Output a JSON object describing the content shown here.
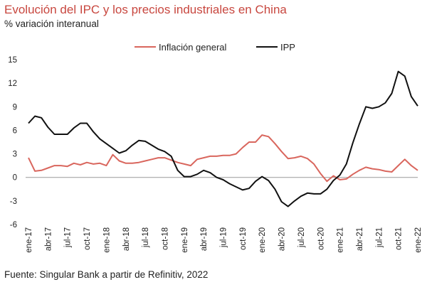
{
  "header": {
    "title": "Evolución del IPC y los precios industriales en China",
    "subtitle": "% variación interanual"
  },
  "footer": {
    "source": "Fuente: Singular Bank a partir de Refinitiv, 2022"
  },
  "colors": {
    "series_1": "#d9665d",
    "series_2": "#111111",
    "title": "#c8473f",
    "zero_line": "#999999"
  },
  "chart_data": {
    "type": "line",
    "title": "Evolución del IPC y los precios industriales en China",
    "subtitle": "% variación interanual",
    "ylim": [
      -6,
      15
    ],
    "yticks": [
      -6,
      -3,
      0,
      3,
      6,
      9,
      12,
      15
    ],
    "grid": false,
    "legend_position": "top-right",
    "x_tick_labels": [
      "ene-17",
      "abr-17",
      "jul-17",
      "oct-17",
      "ene-18",
      "abr-18",
      "jul-18",
      "oct-18",
      "ene-19",
      "abr-19",
      "jul-19",
      "oct-19",
      "ene-20",
      "abr-20",
      "jul-20",
      "oct-20",
      "ene-21",
      "abr-21",
      "jul-21",
      "oct-21",
      "ene-22"
    ],
    "x": [
      "2017-01",
      "2017-02",
      "2017-03",
      "2017-04",
      "2017-05",
      "2017-06",
      "2017-07",
      "2017-08",
      "2017-09",
      "2017-10",
      "2017-11",
      "2017-12",
      "2018-01",
      "2018-02",
      "2018-03",
      "2018-04",
      "2018-05",
      "2018-06",
      "2018-07",
      "2018-08",
      "2018-09",
      "2018-10",
      "2018-11",
      "2018-12",
      "2019-01",
      "2019-02",
      "2019-03",
      "2019-04",
      "2019-05",
      "2019-06",
      "2019-07",
      "2019-08",
      "2019-09",
      "2019-10",
      "2019-11",
      "2019-12",
      "2020-01",
      "2020-02",
      "2020-03",
      "2020-04",
      "2020-05",
      "2020-06",
      "2020-07",
      "2020-08",
      "2020-09",
      "2020-10",
      "2020-11",
      "2020-12",
      "2021-01",
      "2021-02",
      "2021-03",
      "2021-04",
      "2021-05",
      "2021-06",
      "2021-07",
      "2021-08",
      "2021-09",
      "2021-10",
      "2021-11",
      "2021-12",
      "2022-01"
    ],
    "series": [
      {
        "name": "Inflación general",
        "color": "#d9665d",
        "values": [
          2.5,
          0.8,
          0.9,
          1.2,
          1.5,
          1.5,
          1.4,
          1.8,
          1.6,
          1.9,
          1.7,
          1.8,
          1.5,
          2.9,
          2.1,
          1.8,
          1.8,
          1.9,
          2.1,
          2.3,
          2.5,
          2.5,
          2.2,
          1.9,
          1.7,
          1.5,
          2.3,
          2.5,
          2.7,
          2.7,
          2.8,
          2.8,
          3.0,
          3.8,
          4.5,
          4.5,
          5.4,
          5.2,
          4.3,
          3.3,
          2.4,
          2.5,
          2.7,
          2.4,
          1.7,
          0.5,
          -0.5,
          0.2,
          -0.3,
          -0.2,
          0.4,
          0.9,
          1.3,
          1.1,
          1.0,
          0.8,
          0.7,
          1.5,
          2.3,
          1.5,
          0.9
        ]
      },
      {
        "name": "IPP",
        "color": "#111111",
        "values": [
          6.9,
          7.8,
          7.6,
          6.4,
          5.5,
          5.5,
          5.5,
          6.3,
          6.9,
          6.9,
          5.8,
          4.9,
          4.3,
          3.7,
          3.1,
          3.4,
          4.1,
          4.7,
          4.6,
          4.1,
          3.6,
          3.3,
          2.7,
          0.9,
          0.1,
          0.1,
          0.4,
          0.9,
          0.6,
          0.0,
          -0.3,
          -0.8,
          -1.2,
          -1.6,
          -1.4,
          -0.5,
          0.1,
          -0.4,
          -1.5,
          -3.1,
          -3.7,
          -3.0,
          -2.4,
          -2.0,
          -2.1,
          -2.1,
          -1.5,
          -0.4,
          0.3,
          1.7,
          4.4,
          6.8,
          9.0,
          8.8,
          9.0,
          9.5,
          10.7,
          13.5,
          12.9,
          10.3,
          9.1
        ]
      }
    ]
  }
}
